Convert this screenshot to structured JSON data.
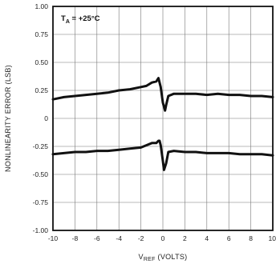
{
  "chart_data": {
    "type": "line",
    "title": "",
    "annotation": "T_A = +25°C",
    "annotation_parts": {
      "main": "T",
      "sub": "A",
      "rest": " = +25°C"
    },
    "xlabel": "V_REF (VOLTS)",
    "xlabel_parts": {
      "main": "V",
      "sub": "REF",
      "rest": " (VOLTS)"
    },
    "ylabel": "NONLINEARITY ERROR (LSB)",
    "xlim": [
      -10,
      10
    ],
    "ylim": [
      -1.0,
      1.0
    ],
    "x_ticks": [
      -10,
      -8,
      -6,
      -4,
      -2,
      0,
      2,
      4,
      6,
      8,
      10
    ],
    "x_tick_labels": [
      "-10",
      "-8",
      "-6",
      "-4",
      "-2",
      "0",
      "2",
      "4",
      "6",
      "8",
      "10"
    ],
    "y_ticks": [
      1.0,
      0.75,
      0.5,
      0.25,
      0,
      -0.25,
      -0.5,
      -0.75,
      -1.0
    ],
    "y_tick_labels": [
      "1.00",
      "0.75",
      "0.50",
      "0.25",
      "0",
      "-0.25",
      "-0.50",
      "-0.75",
      "-1.00"
    ],
    "grid": true,
    "series": [
      {
        "x": [
          -10,
          -9,
          -8,
          -7,
          -6,
          -5,
          -4,
          -3,
          -2,
          -1.5,
          -1,
          -0.6,
          -0.4,
          -0.3,
          -0.2,
          0,
          0.2,
          0.3,
          0.5,
          1,
          2,
          3,
          4,
          5,
          6,
          7,
          8,
          9,
          10
        ],
        "y": [
          0.17,
          0.19,
          0.2,
          0.21,
          0.22,
          0.23,
          0.25,
          0.26,
          0.28,
          0.29,
          0.32,
          0.33,
          0.36,
          0.32,
          0.28,
          0.14,
          0.07,
          0.12,
          0.2,
          0.22,
          0.22,
          0.22,
          0.21,
          0.22,
          0.21,
          0.21,
          0.2,
          0.2,
          0.19
        ]
      },
      {
        "x": [
          -10,
          -9,
          -8,
          -7,
          -6,
          -5,
          -4,
          -3,
          -2,
          -1.5,
          -1,
          -0.6,
          -0.4,
          -0.3,
          -0.2,
          0,
          0.1,
          0.3,
          0.5,
          1,
          2,
          3,
          4,
          5,
          6,
          7,
          8,
          9,
          10
        ],
        "y": [
          -0.32,
          -0.31,
          -0.3,
          -0.3,
          -0.29,
          -0.29,
          -0.28,
          -0.27,
          -0.26,
          -0.24,
          -0.22,
          -0.22,
          -0.2,
          -0.2,
          -0.24,
          -0.38,
          -0.46,
          -0.4,
          -0.3,
          -0.29,
          -0.3,
          -0.3,
          -0.31,
          -0.31,
          -0.31,
          -0.32,
          -0.32,
          -0.32,
          -0.33
        ]
      }
    ]
  }
}
